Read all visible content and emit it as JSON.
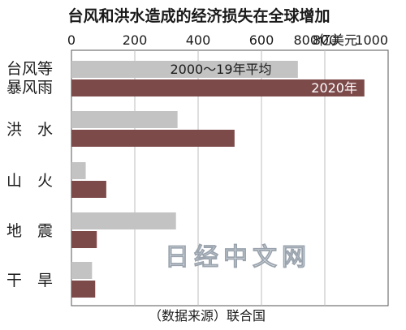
{
  "chart_data": {
    "type": "bar",
    "orientation": "horizontal",
    "title": "台风和洪水造成的经济损失在全球增加",
    "unit_label": "800亿美元",
    "xlim": [
      0,
      1000
    ],
    "xticks": [
      0,
      200,
      400,
      600,
      800,
      1000
    ],
    "grid": true,
    "categories": [
      "台风等\n暴风雨",
      "洪　水",
      "山　火",
      "地　震",
      "干　旱"
    ],
    "series": [
      {
        "name": "2000～19年平均",
        "color": "#c3c3c3",
        "values": [
          715,
          335,
          45,
          330,
          65
        ]
      },
      {
        "name": "2020年",
        "color": "#7d4a4a",
        "values": [
          925,
          515,
          110,
          80,
          75
        ]
      }
    ],
    "source": "（数据来源）联合国"
  },
  "watermark": "日经中文网"
}
